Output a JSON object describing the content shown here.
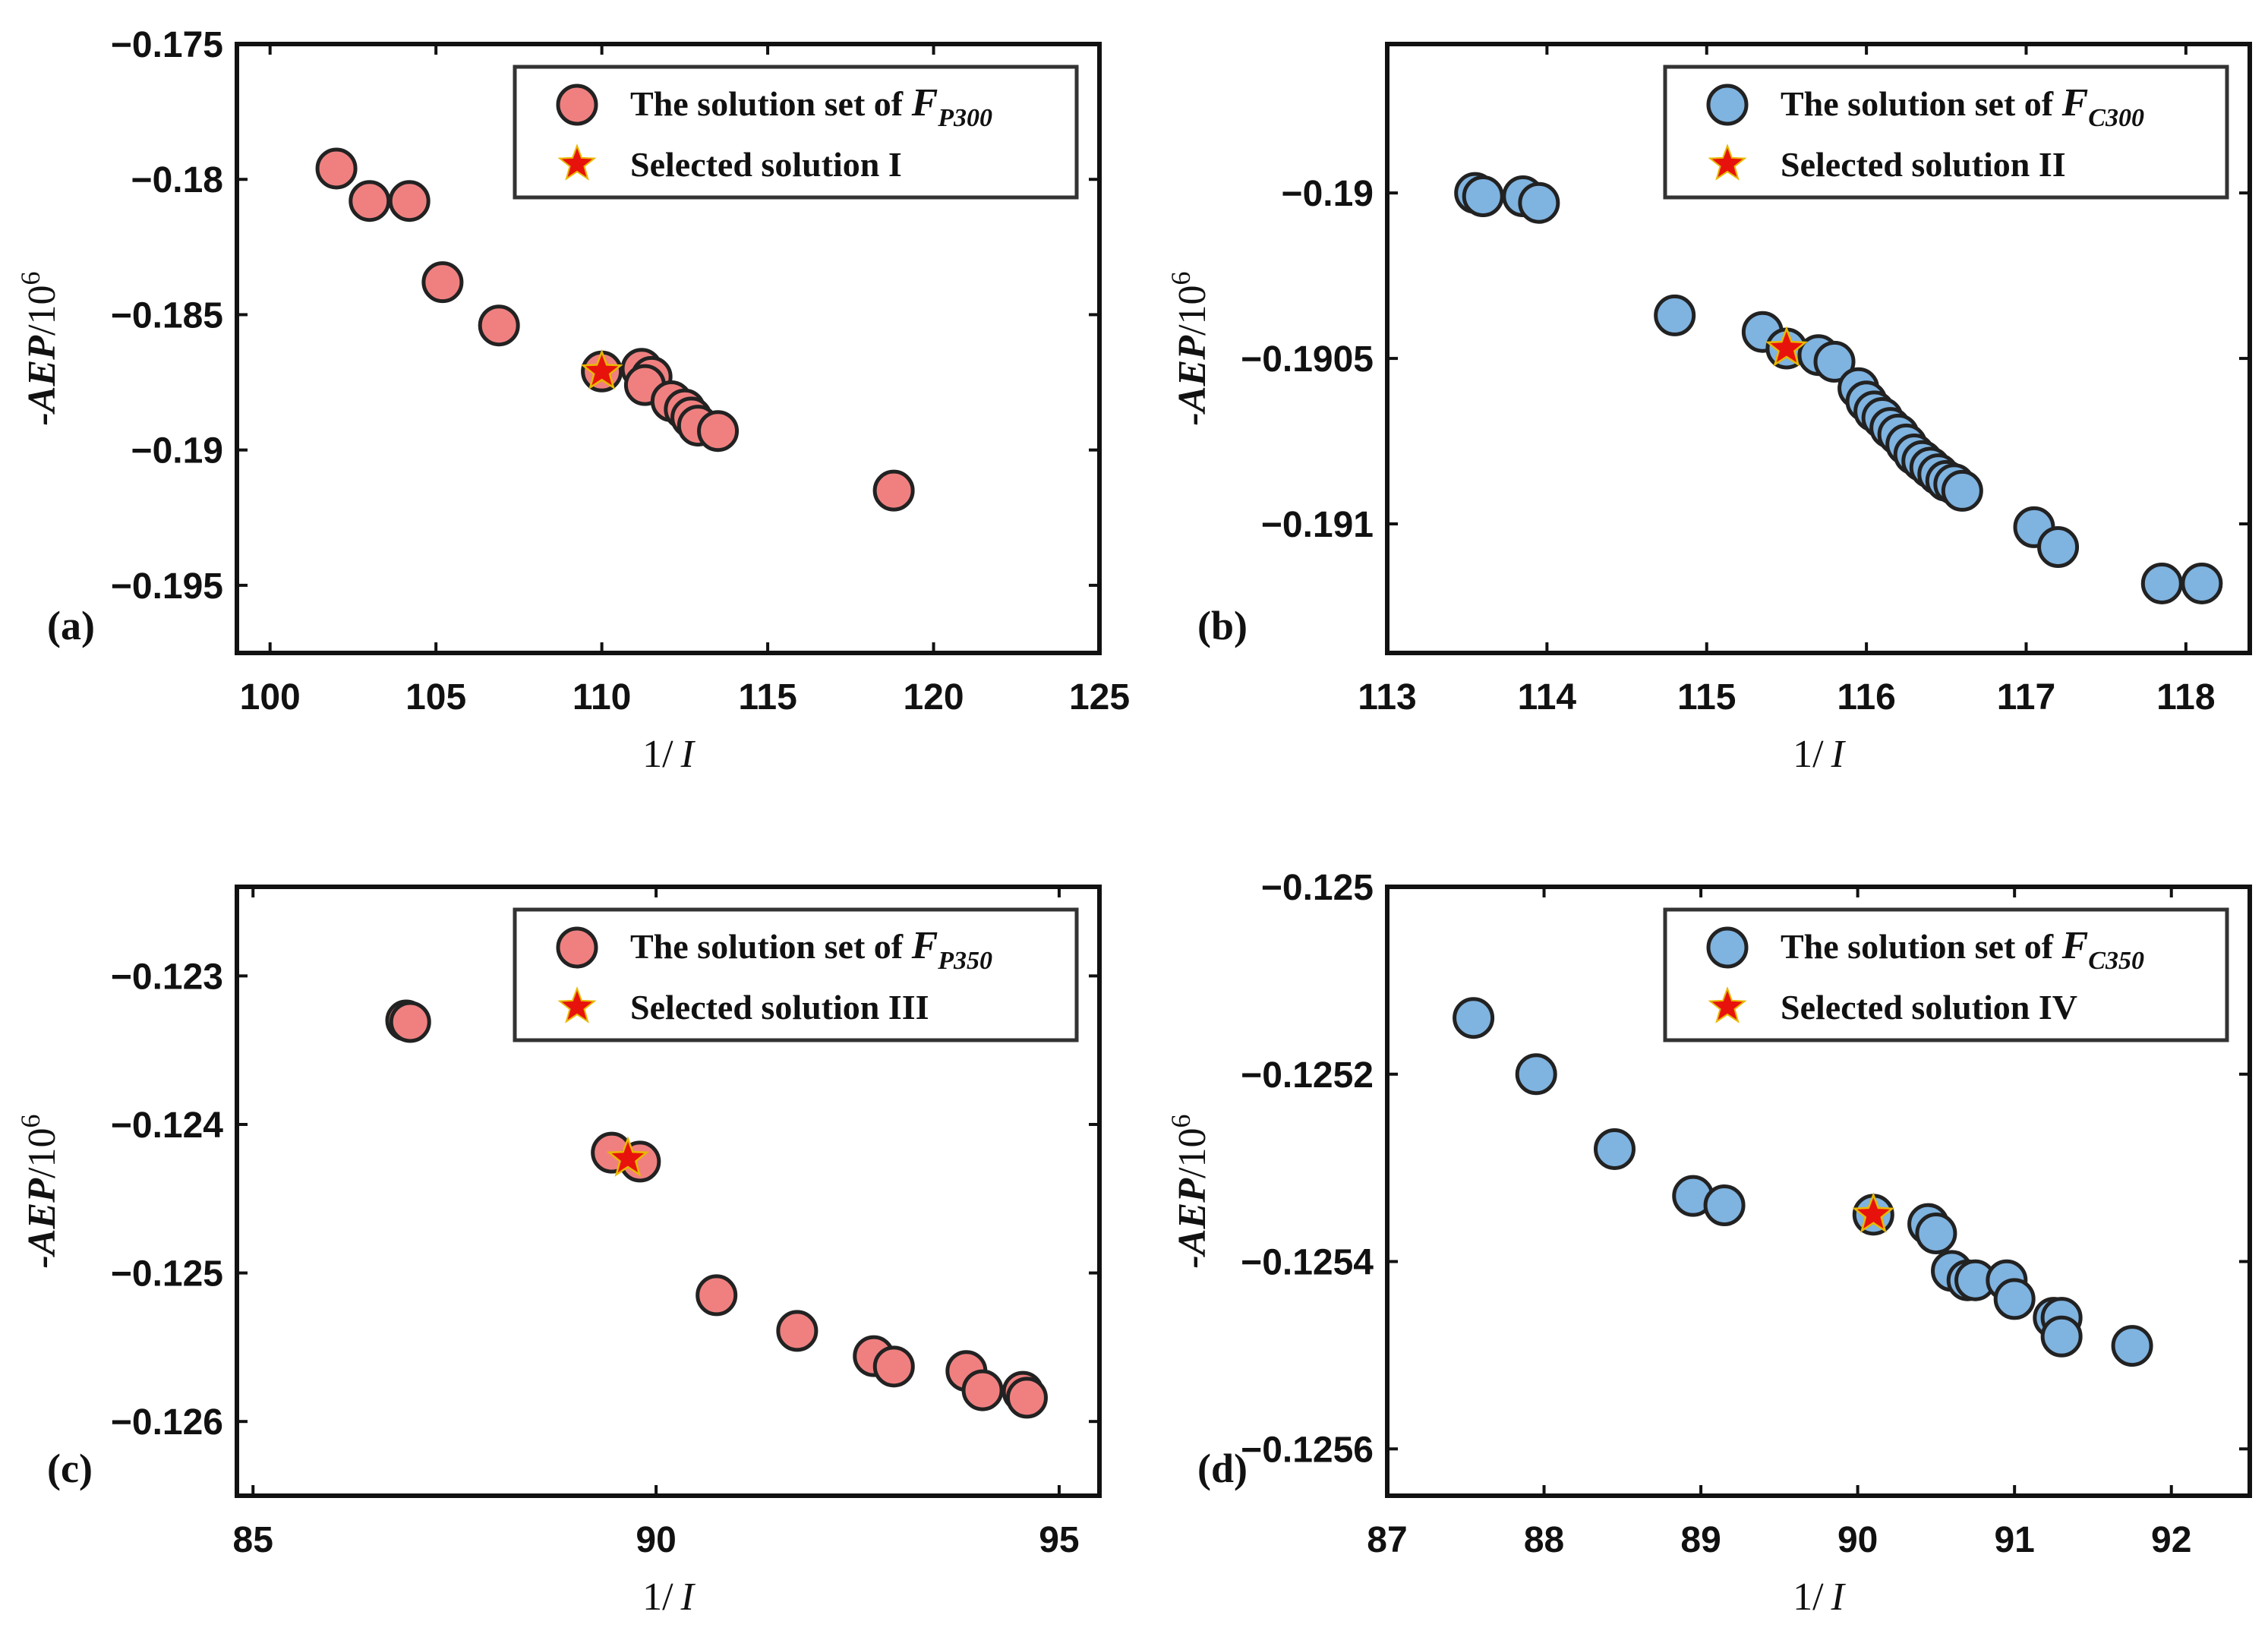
{
  "chart_data": [
    {
      "type": "scatter",
      "panel_label": "(a)",
      "xlabel_num": "1/",
      "xlabel_var": "I",
      "ylabel_var": "-AEP",
      "ylabel_unit": "/10",
      "ylabel_exp": "6",
      "xlim": [
        99,
        125
      ],
      "ylim": [
        -0.1975,
        -0.175
      ],
      "xticks": [
        100,
        105,
        110,
        115,
        120,
        125
      ],
      "xtick_labels": [
        "100",
        "105",
        "110",
        "115",
        "120",
        "125"
      ],
      "yticks": [
        -0.175,
        -0.18,
        -0.185,
        -0.19,
        -0.195
      ],
      "ytick_labels": [
        "−0.175",
        "−0.18",
        "−0.185",
        "−0.19",
        "−0.195"
      ],
      "series_color": "#F08080",
      "legend": {
        "position": "top-right",
        "solution_prefix": "The solution set of ",
        "solution_var": "F",
        "solution_sub": "P300",
        "selected": "Selected solution I"
      },
      "points": [
        {
          "x": 102.0,
          "y": -0.1796
        },
        {
          "x": 103.0,
          "y": -0.1808
        },
        {
          "x": 104.2,
          "y": -0.1808
        },
        {
          "x": 105.2,
          "y": -0.1838
        },
        {
          "x": 106.9,
          "y": -0.1854
        },
        {
          "x": 110.0,
          "y": -0.1871
        },
        {
          "x": 111.2,
          "y": -0.187
        },
        {
          "x": 111.5,
          "y": -0.1873
        },
        {
          "x": 111.3,
          "y": -0.1876
        },
        {
          "x": 112.1,
          "y": -0.1882
        },
        {
          "x": 112.5,
          "y": -0.1885
        },
        {
          "x": 112.7,
          "y": -0.1888
        },
        {
          "x": 112.9,
          "y": -0.1891
        },
        {
          "x": 113.5,
          "y": -0.1893
        },
        {
          "x": 118.8,
          "y": -0.1915
        }
      ],
      "selected_point": {
        "x": 110.0,
        "y": -0.1871
      }
    },
    {
      "type": "scatter",
      "panel_label": "(b)",
      "xlabel_num": "1/",
      "xlabel_var": "I",
      "ylabel_var": "-AEP",
      "ylabel_unit": "/10",
      "ylabel_exp": "6",
      "xlim": [
        113,
        118.4
      ],
      "ylim": [
        -0.19139,
        -0.18955
      ],
      "xticks": [
        113,
        114,
        115,
        116,
        117,
        118
      ],
      "xtick_labels": [
        "113",
        "114",
        "115",
        "116",
        "117",
        "118"
      ],
      "yticks": [
        -0.19,
        -0.1905,
        -0.191
      ],
      "ytick_labels": [
        "−0.19",
        "−0.1905",
        "−0.191"
      ],
      "series_color": "#7FB3E0",
      "legend": {
        "position": "top-right",
        "solution_prefix": "The solution set of ",
        "solution_var": "F",
        "solution_sub": "C300",
        "selected": "Selected solution II"
      },
      "points": [
        {
          "x": 113.55,
          "y": -0.19
        },
        {
          "x": 113.6,
          "y": -0.19001
        },
        {
          "x": 113.85,
          "y": -0.19001
        },
        {
          "x": 113.95,
          "y": -0.19003
        },
        {
          "x": 114.8,
          "y": -0.19037
        },
        {
          "x": 115.35,
          "y": -0.19042
        },
        {
          "x": 115.5,
          "y": -0.19047
        },
        {
          "x": 115.7,
          "y": -0.19049
        },
        {
          "x": 115.8,
          "y": -0.19051
        },
        {
          "x": 115.95,
          "y": -0.19059
        },
        {
          "x": 116.0,
          "y": -0.19063
        },
        {
          "x": 116.05,
          "y": -0.19066
        },
        {
          "x": 116.1,
          "y": -0.19068
        },
        {
          "x": 116.15,
          "y": -0.19071
        },
        {
          "x": 116.2,
          "y": -0.19073
        },
        {
          "x": 116.25,
          "y": -0.19076
        },
        {
          "x": 116.3,
          "y": -0.19079
        },
        {
          "x": 116.35,
          "y": -0.19081
        },
        {
          "x": 116.4,
          "y": -0.19083
        },
        {
          "x": 116.45,
          "y": -0.19085
        },
        {
          "x": 116.5,
          "y": -0.19087
        },
        {
          "x": 116.55,
          "y": -0.19088
        },
        {
          "x": 116.6,
          "y": -0.1909
        },
        {
          "x": 117.05,
          "y": -0.19101
        },
        {
          "x": 117.2,
          "y": -0.19107
        },
        {
          "x": 117.85,
          "y": -0.19118
        },
        {
          "x": 118.1,
          "y": -0.19118
        }
      ],
      "selected_point": {
        "x": 115.5,
        "y": -0.19047
      }
    },
    {
      "type": "scatter",
      "panel_label": "(c)",
      "xlabel_num": "1/",
      "xlabel_var": "I",
      "ylabel_var": "-AEP",
      "ylabel_unit": "/10",
      "ylabel_exp": "6",
      "xlim": [
        84.8,
        95.5
      ],
      "ylim": [
        -0.1265,
        -0.1224
      ],
      "xticks": [
        85,
        90,
        95
      ],
      "xtick_labels": [
        "85",
        "90",
        "95"
      ],
      "yticks": [
        -0.123,
        -0.124,
        -0.125,
        -0.126
      ],
      "ytick_labels": [
        "−0.123",
        "−0.124",
        "−0.125",
        "−0.126"
      ],
      "series_color": "#F08080",
      "legend": {
        "position": "top-right",
        "solution_prefix": "The solution set of ",
        "solution_var": "F",
        "solution_sub": "P350",
        "selected": "Selected solution III"
      },
      "points": [
        {
          "x": 86.9,
          "y": -0.1233
        },
        {
          "x": 86.95,
          "y": -0.12331
        },
        {
          "x": 89.45,
          "y": -0.12419
        },
        {
          "x": 89.8,
          "y": -0.12425
        },
        {
          "x": 90.75,
          "y": -0.12515
        },
        {
          "x": 91.75,
          "y": -0.12539
        },
        {
          "x": 92.7,
          "y": -0.12556
        },
        {
          "x": 92.95,
          "y": -0.12563
        },
        {
          "x": 93.85,
          "y": -0.12566
        },
        {
          "x": 94.05,
          "y": -0.12579
        },
        {
          "x": 94.55,
          "y": -0.1258
        },
        {
          "x": 94.6,
          "y": -0.12584
        }
      ],
      "selected_point": {
        "x": 89.65,
        "y": -0.12423
      }
    },
    {
      "type": "scatter",
      "panel_label": "(d)",
      "xlabel_num": "1/",
      "xlabel_var": "I",
      "ylabel_var": "-AEP",
      "ylabel_unit": "/10",
      "ylabel_exp": "6",
      "xlim": [
        87,
        92.5
      ],
      "ylim": [
        -0.12565,
        -0.125
      ],
      "xticks": [
        87,
        88,
        89,
        90,
        91,
        92
      ],
      "xtick_labels": [
        "87",
        "88",
        "89",
        "90",
        "91",
        "92"
      ],
      "yticks": [
        -0.125,
        -0.1252,
        -0.1254,
        -0.1256
      ],
      "ytick_labels": [
        "−0.125",
        "−0.1252",
        "−0.1254",
        "−0.1256"
      ],
      "series_color": "#7FB3E0",
      "legend": {
        "position": "top-right",
        "solution_prefix": "The solution set of ",
        "solution_var": "F",
        "solution_sub": "C350",
        "selected": "Selected solution IV"
      },
      "points": [
        {
          "x": 87.55,
          "y": -0.12514
        },
        {
          "x": 87.95,
          "y": -0.1252
        },
        {
          "x": 88.45,
          "y": -0.12528
        },
        {
          "x": 88.95,
          "y": -0.12533
        },
        {
          "x": 89.15,
          "y": -0.12534
        },
        {
          "x": 90.1,
          "y": -0.12535
        },
        {
          "x": 90.45,
          "y": -0.12536
        },
        {
          "x": 90.5,
          "y": -0.12537
        },
        {
          "x": 90.6,
          "y": -0.12541
        },
        {
          "x": 90.7,
          "y": -0.12542
        },
        {
          "x": 90.75,
          "y": -0.12542
        },
        {
          "x": 90.95,
          "y": -0.12542
        },
        {
          "x": 91.0,
          "y": -0.12544
        },
        {
          "x": 91.25,
          "y": -0.12546
        },
        {
          "x": 91.3,
          "y": -0.12546
        },
        {
          "x": 91.3,
          "y": -0.12548
        },
        {
          "x": 91.75,
          "y": -0.12549
        }
      ],
      "selected_point": {
        "x": 90.1,
        "y": -0.12535
      }
    }
  ]
}
